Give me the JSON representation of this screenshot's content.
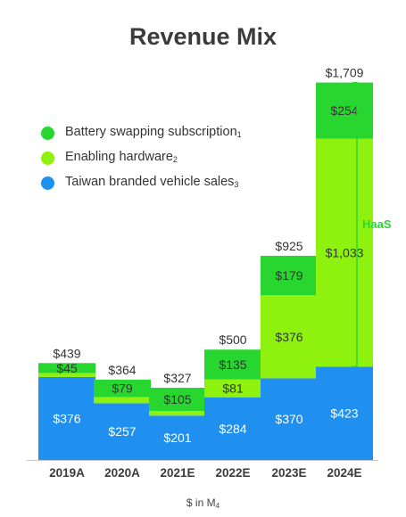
{
  "chart_data": {
    "type": "bar",
    "stacked": true,
    "title": "Revenue Mix",
    "unit_note": "$ in M",
    "unit_note_marker": "4",
    "categories": [
      "2019A",
      "2020A",
      "2021E",
      "2022E",
      "2023E",
      "2024E"
    ],
    "totals": [
      "$439",
      "$364",
      "$327",
      "$500",
      "$925",
      "$1,709"
    ],
    "series": [
      {
        "name": "Taiwan branded vehicle sales",
        "marker": "3",
        "color": "#1f8ff0",
        "values": [
          376,
          257,
          201,
          284,
          370,
          423
        ],
        "labels": [
          "$376",
          "$257",
          "$201",
          "$284",
          "$370",
          "$423"
        ]
      },
      {
        "name": "Enabling hardware",
        "marker": "2",
        "color": "#8ff20e",
        "values": [
          18,
          28,
          21,
          81,
          376,
          1033
        ],
        "labels": [
          "",
          "",
          "",
          "$81",
          "$376",
          "$1,033"
        ]
      },
      {
        "name": "Battery swapping subscription",
        "marker": "1",
        "color": "#28d630",
        "values": [
          45,
          79,
          105,
          135,
          179,
          254
        ],
        "labels": [
          "$45",
          "$79",
          "$105",
          "$135",
          "$179",
          "$254"
        ]
      }
    ],
    "legend_order": [
      2,
      1,
      0
    ],
    "legend_position": "top-left",
    "bracket_label": "HaaS",
    "grid": false
  }
}
